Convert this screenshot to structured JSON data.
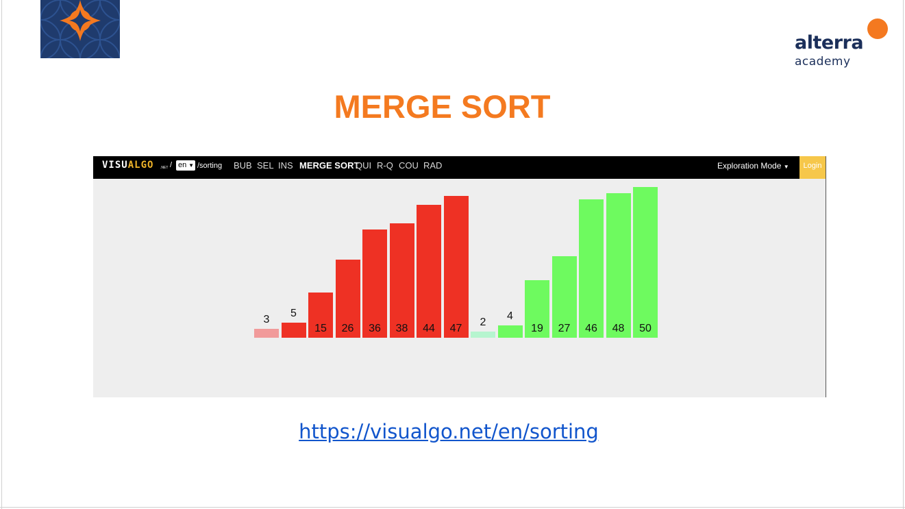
{
  "slide": {
    "title": "MERGE SORT",
    "link": "https://visualgo.net/en/sorting",
    "colors": {
      "title": "#f47a20",
      "link": "#1155cc",
      "logo_bg": "#1f3b6d",
      "logo_orange": "#f47920"
    }
  },
  "logo_right": {
    "word": "alterra",
    "sub": "academy"
  },
  "visualgo": {
    "brand_visu": "VISU",
    "brand_algo": "ALGO",
    "brand_net": ".NET",
    "slash": "/",
    "language": "en",
    "path": "/sorting",
    "nav": [
      "BUB",
      "SEL",
      "INS",
      "MERGE SORT",
      "QUI",
      "R-Q",
      "COU",
      "RAD"
    ],
    "active_nav": "MERGE SORT",
    "mode": "Exploration Mode",
    "login": "Login"
  },
  "chart_data": {
    "type": "bar",
    "title": "",
    "values": [
      3,
      5,
      15,
      26,
      36,
      38,
      44,
      47,
      2,
      4,
      19,
      27,
      46,
      48,
      50
    ],
    "colors": [
      "#f19a9a",
      "#ee3124",
      "#ee3124",
      "#ee3124",
      "#ee3124",
      "#ee3124",
      "#ee3124",
      "#ee3124",
      "#b6f5cf",
      "#6efa5f",
      "#6efa5f",
      "#6efa5f",
      "#6efa5f",
      "#6efa5f",
      "#6efa5f"
    ]
  }
}
